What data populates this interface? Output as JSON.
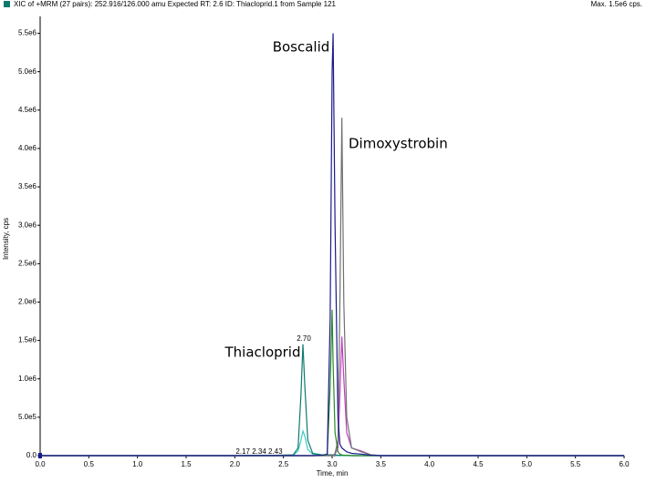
{
  "chart_data": {
    "type": "line",
    "title": "XIC of +MRM (27 pairs): 252.916/126.000 amu Expected RT: 2.6 ID: Thiacloprid.1 from Sample 121",
    "subtitle": "Max. 1.5e6 cps.",
    "x_label": "Time, min",
    "y_label": "Intensity, cps",
    "annotations": [
      "Boscalid",
      "Dimoxystrobin",
      "Thiacloprid",
      "2.70",
      "2.17 2.34 2.43"
    ],
    "x": [
      0,
      2.0,
      2.17,
      2.34,
      2.43,
      2.6,
      2.65,
      2.68,
      2.7,
      2.72,
      2.75,
      2.8,
      2.9,
      2.95,
      2.98,
      3.0,
      3.01,
      3.03,
      3.06,
      3.08,
      3.1,
      3.12,
      3.15,
      3.2,
      3.3,
      3.4,
      3.5,
      6.0
    ],
    "series": [
      {
        "color": "#40c8c8",
        "values": [
          0,
          0,
          0,
          0,
          0,
          5000,
          60000,
          200000,
          320000,
          250000,
          80000,
          20000,
          5000,
          5000,
          5000,
          5000,
          5000,
          5000,
          0,
          0,
          0,
          0,
          0,
          0,
          0,
          0,
          0,
          0
        ]
      },
      {
        "color": "#0e7a6e",
        "values": [
          0,
          0,
          5000,
          5000,
          5000,
          10000,
          100000,
          800000,
          1450000,
          900000,
          200000,
          30000,
          10000,
          10000,
          10000,
          10000,
          10000,
          10000,
          5000,
          5000,
          5000,
          5000,
          5000,
          0,
          0,
          0,
          0,
          0
        ]
      },
      {
        "color": "#c040c0",
        "values": [
          0,
          0,
          0,
          0,
          0,
          0,
          0,
          0,
          0,
          0,
          0,
          0,
          0,
          0,
          0,
          0,
          0,
          20000,
          100000,
          800000,
          1550000,
          1000000,
          300000,
          100000,
          60000,
          10000,
          0,
          0
        ]
      },
      {
        "color": "#707070",
        "values": [
          0,
          0,
          0,
          0,
          0,
          0,
          0,
          0,
          0,
          0,
          0,
          0,
          0,
          0,
          0,
          0,
          0,
          30000,
          200000,
          2000000,
          4400000,
          2000000,
          500000,
          100000,
          50000,
          10000,
          0,
          0
        ]
      },
      {
        "color": "#2a8a2a",
        "values": [
          0,
          0,
          0,
          0,
          0,
          0,
          0,
          0,
          0,
          0,
          0,
          0,
          5000,
          10000,
          900000,
          1900000,
          1200000,
          300000,
          50000,
          20000,
          10000,
          5000,
          5000,
          0,
          0,
          0,
          0,
          0
        ]
      },
      {
        "color": "#1a1a8c",
        "values": [
          0,
          0,
          0,
          0,
          0,
          0,
          0,
          0,
          0,
          0,
          0,
          0,
          5000,
          20000,
          1800000,
          5000000,
          5500000,
          3000000,
          500000,
          150000,
          100000,
          80000,
          50000,
          30000,
          20000,
          5000,
          0,
          0
        ]
      }
    ],
    "xlim": [
      0,
      6.0
    ],
    "xticks": [
      {
        "value": 0,
        "label": "0.0"
      },
      0.5,
      {
        "value": 1,
        "label": "1.0"
      },
      1.5,
      {
        "value": 2,
        "label": "2.0"
      },
      2.5,
      {
        "value": 3,
        "label": "3.0"
      },
      3.5,
      {
        "value": 4,
        "label": "4.0"
      },
      4.5,
      {
        "value": 5,
        "label": "5.0"
      },
      5.5,
      {
        "value": 6,
        "label": "6.0"
      }
    ],
    "ylim": [
      0,
      5720000
    ],
    "yticks": [
      {
        "value": 0,
        "label": "0.0"
      },
      {
        "value": 500000,
        "label": "5.0e5"
      },
      {
        "value": 1000000,
        "label": "1.0e6"
      },
      {
        "value": 1500000,
        "label": "1.5e6"
      },
      {
        "value": 2000000,
        "label": "2.0e6"
      },
      {
        "value": 2500000,
        "label": "2.5e6"
      },
      {
        "value": 3000000,
        "label": "3.0e6"
      },
      {
        "value": 3500000,
        "label": "3.5e6"
      },
      {
        "value": 4000000,
        "label": "4.0e6"
      },
      {
        "value": 4500000,
        "label": "4.5e6"
      },
      {
        "value": 5000000,
        "label": "5.0e6"
      },
      {
        "value": 5500000,
        "label": "5.5e6"
      }
    ]
  }
}
